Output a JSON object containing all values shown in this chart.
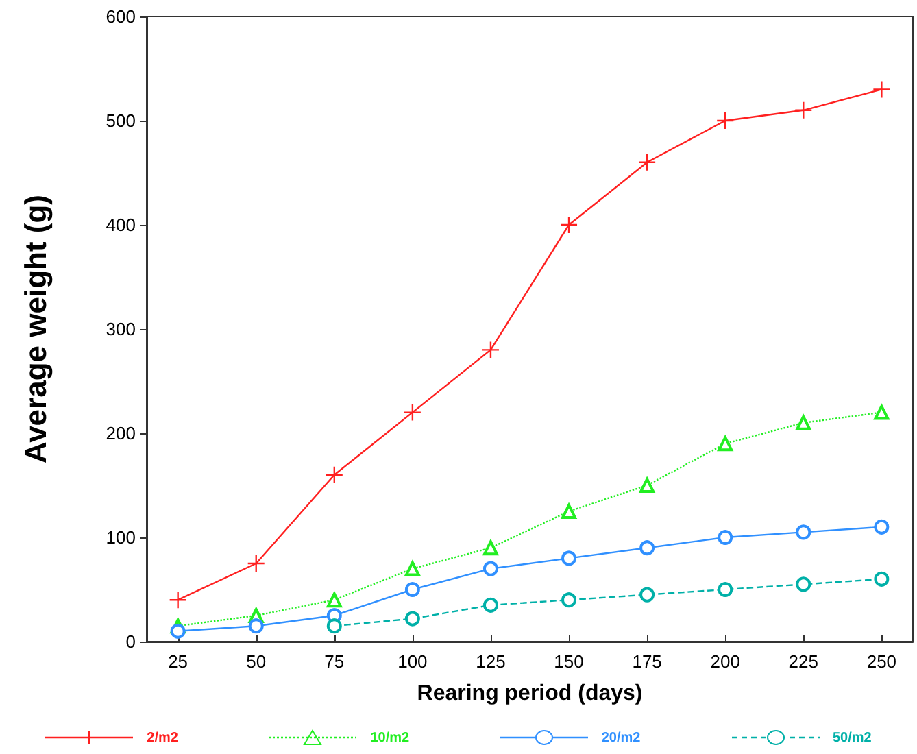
{
  "chart_data": {
    "type": "line",
    "xlabel": "Rearing period (days)",
    "ylabel": "Average weight (g)",
    "x": [
      25,
      50,
      75,
      100,
      125,
      150,
      175,
      200,
      225,
      250
    ],
    "xlim": [
      15,
      260
    ],
    "xticks": [
      25,
      50,
      75,
      100,
      125,
      150,
      175,
      200,
      225,
      250
    ],
    "ylim": [
      0,
      600
    ],
    "yticks": [
      0,
      100,
      200,
      300,
      400,
      500,
      600
    ],
    "grid": false,
    "legend": "bottom",
    "series": [
      {
        "name": "2/m2",
        "color": "#ff2020",
        "marker": "cross",
        "line_style": "solid",
        "values": [
          40,
          75,
          160,
          220,
          280,
          400,
          460,
          500,
          510,
          530
        ]
      },
      {
        "name": "10/m2",
        "color": "#22ee22",
        "marker": "triangle",
        "line_style": "dotted",
        "values": [
          15,
          25,
          40,
          70,
          90,
          125,
          150,
          190,
          210,
          220
        ]
      },
      {
        "name": "20/m2",
        "color": "#3090ff",
        "marker": "circle",
        "line_style": "solid",
        "values": [
          10,
          15,
          25,
          50,
          70,
          80,
          90,
          100,
          105,
          110
        ]
      },
      {
        "name": "50/m2",
        "color": "#00b0a8",
        "marker": "circle",
        "line_style": "dashed",
        "values": [
          null,
          null,
          15,
          22,
          35,
          40,
          45,
          50,
          55,
          60
        ]
      }
    ]
  }
}
